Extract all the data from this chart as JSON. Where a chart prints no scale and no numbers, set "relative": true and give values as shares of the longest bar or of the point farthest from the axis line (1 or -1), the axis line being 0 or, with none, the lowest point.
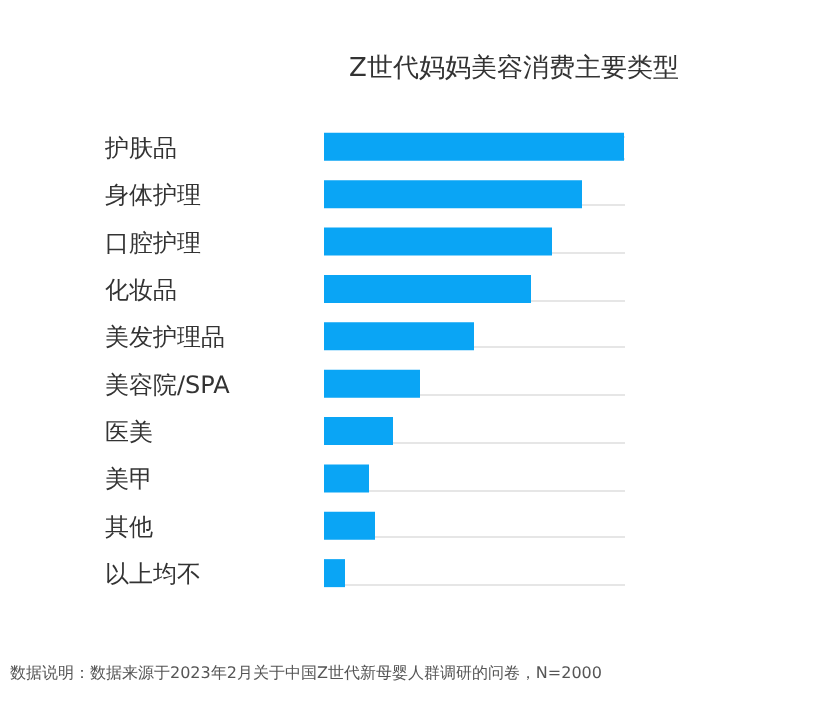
{
  "chart_data": {
    "type": "bar",
    "orientation": "horizontal",
    "relative": true,
    "title": "Z世代妈妈美容消费主要类型",
    "categories": [
      "护肤品",
      "身体护理",
      "口腔护理",
      "化妆品",
      "美发护理品",
      "美容院/SPA",
      "医美",
      "美甲",
      "其他",
      "以上均不"
    ],
    "values": [
      1,
      0.86,
      0.76,
      0.69,
      0.5,
      0.32,
      0.23,
      0.15,
      0.17,
      0.07
    ],
    "color": "#0aa5f5",
    "grid": "y",
    "annotations": [
      "数据说明：数据来源于2023年2月关于中国Z世代新母婴人群调研的问卷，N=2000"
    ]
  }
}
